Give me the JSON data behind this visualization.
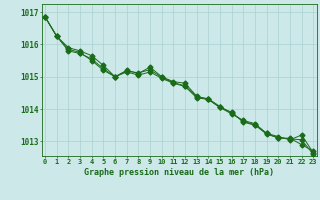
{
  "title": "Graphe pression niveau de la mer (hPa)",
  "bg_color": "#cce8e8",
  "grid_color": "#aad0d0",
  "line_color": "#1a6b1a",
  "x_ticks": [
    0,
    1,
    2,
    3,
    4,
    5,
    6,
    7,
    8,
    9,
    10,
    11,
    12,
    13,
    14,
    15,
    16,
    17,
    18,
    19,
    20,
    21,
    22,
    23
  ],
  "y_ticks": [
    1013,
    1014,
    1015,
    1016,
    1017
  ],
  "ylim": [
    1012.55,
    1017.25
  ],
  "xlim": [
    -0.3,
    23.3
  ],
  "series1": [
    1016.85,
    1016.25,
    1015.9,
    1015.8,
    1015.65,
    1015.35,
    1015.0,
    1015.2,
    1015.1,
    1015.3,
    1015.0,
    1014.85,
    1014.8,
    1014.4,
    1014.3,
    1014.05,
    1013.85,
    1013.65,
    1013.55,
    1013.25,
    1013.1,
    1013.1,
    1012.9,
    1012.7
  ],
  "series2": [
    1016.85,
    1016.25,
    1015.85,
    1015.75,
    1015.5,
    1015.2,
    1015.0,
    1015.15,
    1015.05,
    1015.15,
    1014.95,
    1014.8,
    1014.7,
    1014.35,
    1014.3,
    1014.05,
    1013.9,
    1013.6,
    1013.5,
    1013.25,
    1013.15,
    1013.05,
    1013.2,
    1012.65
  ],
  "series3": [
    1016.85,
    1016.25,
    1015.8,
    1015.72,
    1015.55,
    1015.25,
    1015.0,
    1015.18,
    1015.12,
    1015.22,
    1014.98,
    1014.82,
    1014.72,
    1014.38,
    1014.32,
    1014.08,
    1013.88,
    1013.62,
    1013.52,
    1013.22,
    1013.12,
    1013.08,
    1013.05,
    1012.6
  ]
}
